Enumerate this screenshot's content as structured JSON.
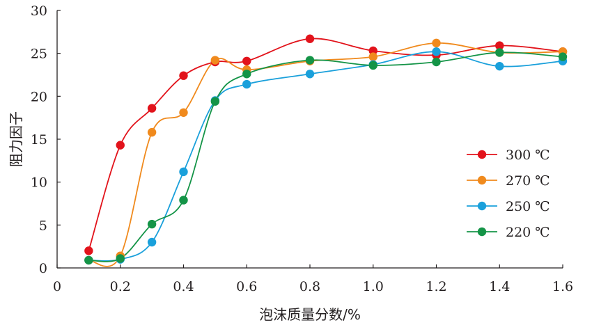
{
  "chart_data": {
    "type": "line",
    "title": "",
    "xlabel": "泡沫质量分数/%",
    "ylabel": "阻力因子",
    "xlim": [
      0,
      1.6
    ],
    "ylim": [
      0,
      30
    ],
    "x_ticks": [
      0,
      0.2,
      0.4,
      0.6,
      0.8,
      1.0,
      1.2,
      1.4,
      1.6
    ],
    "x_tick_labels": [
      "0",
      "0.2",
      "0.4",
      "0.6",
      "0.8",
      "1.0",
      "1.2",
      "1.4",
      "1.6"
    ],
    "y_ticks": [
      0,
      5,
      10,
      15,
      20,
      25,
      30
    ],
    "y_tick_labels": [
      "0",
      "5",
      "10",
      "15",
      "20",
      "25",
      "30"
    ],
    "grid": false,
    "legend_position": "right",
    "smooth": true,
    "x": [
      0.1,
      0.2,
      0.3,
      0.4,
      0.5,
      0.6,
      0.8,
      1.0,
      1.2,
      1.4,
      1.6
    ],
    "series": [
      {
        "name": "300 ℃",
        "color": "#e2131b",
        "values": [
          2.0,
          14.3,
          18.6,
          22.4,
          24.0,
          24.1,
          26.7,
          25.3,
          24.8,
          25.9,
          25.2
        ]
      },
      {
        "name": "270 ℃",
        "color": "#f08a1d",
        "values": [
          0.9,
          1.4,
          15.8,
          18.1,
          24.2,
          23.1,
          24.1,
          24.6,
          26.2,
          25.1,
          25.2
        ]
      },
      {
        "name": "250 ℃",
        "color": "#1aa0db",
        "values": [
          0.9,
          1.0,
          3.0,
          11.2,
          19.5,
          21.4,
          22.6,
          23.7,
          25.2,
          23.5,
          24.1
        ]
      },
      {
        "name": "220 ℃",
        "color": "#149447",
        "values": [
          0.9,
          1.1,
          5.1,
          7.9,
          19.4,
          22.6,
          24.2,
          23.6,
          24.0,
          25.1,
          24.6
        ]
      }
    ]
  }
}
